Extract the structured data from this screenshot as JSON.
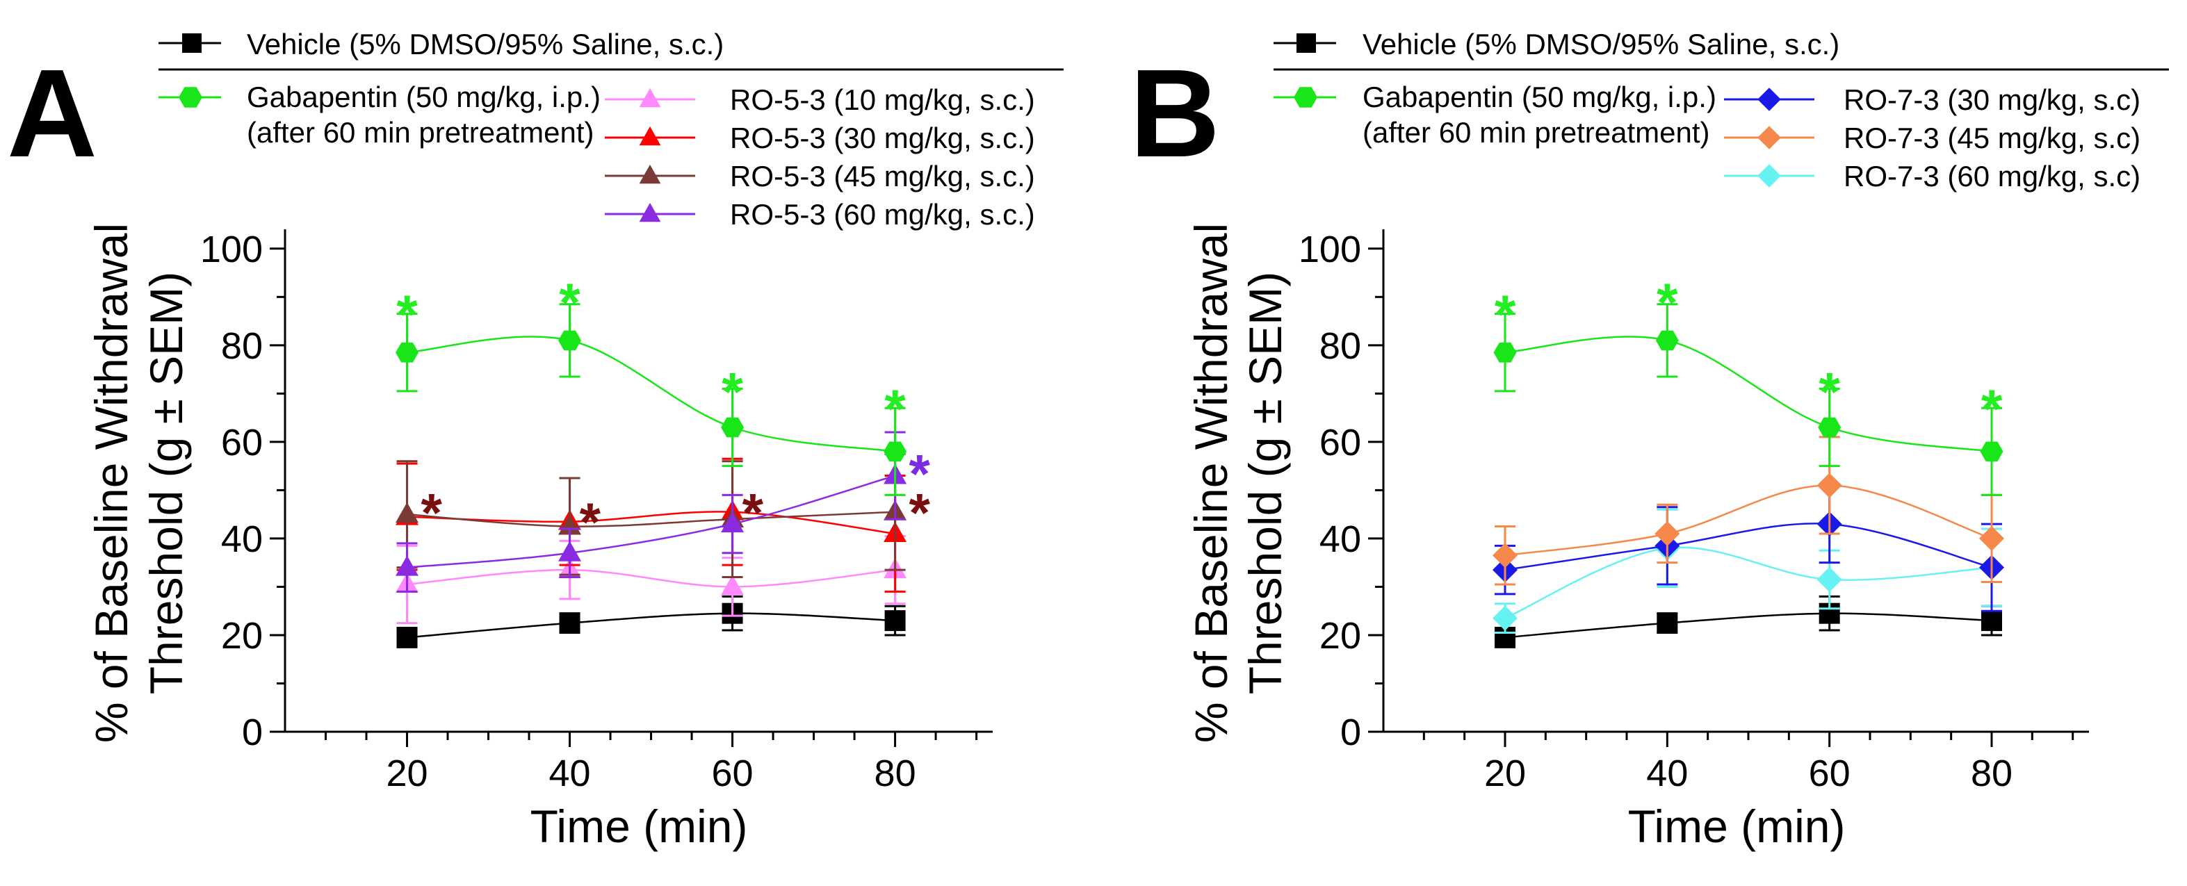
{
  "chart_data": [
    {
      "type": "line",
      "panel_label": "A",
      "xlabel": "Time (min)",
      "ylabel_line1": "% of Baseline Withdrawal",
      "ylabel_line2": "Threshold (g ± SEM)",
      "xlim": [
        5,
        92
      ],
      "ylim": [
        0,
        104
      ],
      "xticks": [
        20,
        40,
        60,
        80
      ],
      "yticks": [
        0,
        20,
        40,
        60,
        80,
        100
      ],
      "x": [
        20,
        40,
        60,
        80
      ],
      "legend": {
        "header": "Vehicle (5% DMSO/95% Saline, s.c.)",
        "gabapentin_line1": "Gabapentin (50 mg/kg, i.p.)",
        "gabapentin_line2": "(after 60 min pretreatment)"
      },
      "series": [
        {
          "name": "Vehicle (5% DMSO/95% Saline, s.c.)",
          "color": "#000000",
          "marker": "square",
          "y": [
            19.5,
            22.5,
            24.5,
            23
          ],
          "err": [
            2,
            2,
            3.5,
            3
          ],
          "legend_slot": "header"
        },
        {
          "name": "RO-5-3 (10 mg/kg, s.c.)",
          "color": "#ff88ff",
          "marker": "triangle",
          "y": [
            30.5,
            33.5,
            30,
            33.5
          ],
          "err": [
            8,
            6,
            6,
            7
          ],
          "legend_slot": "col2"
        },
        {
          "name": "RO-5-3 (30 mg/kg, s.c.)",
          "color": "#ff0000",
          "marker": "triangle",
          "y": [
            44.5,
            43.5,
            45.5,
            41
          ],
          "err": [
            11,
            9,
            11,
            12
          ],
          "legend_slot": "col2"
        },
        {
          "name": "RO-5-3 (45 mg/kg, s.c.)",
          "color": "#7b3a36",
          "marker": "triangle",
          "y": [
            45,
            42.5,
            44,
            45.5
          ],
          "err": [
            11,
            10,
            12,
            12
          ],
          "legend_slot": "col2"
        },
        {
          "name": "RO-5-3 (60 mg/kg, s.c.)",
          "color": "#8a2be2",
          "marker": "triangle",
          "y": [
            34,
            37,
            43,
            53
          ],
          "err": [
            5,
            5,
            6,
            9
          ],
          "legend_slot": "col2"
        },
        {
          "name": "Gabapentin (50 mg/kg, i.p.)",
          "color": "#19e619",
          "marker": "hexagon",
          "y": [
            78.5,
            81,
            63,
            58
          ],
          "err": [
            8,
            7.5,
            8,
            9
          ],
          "legend_slot": "gabapentin"
        }
      ],
      "annotations": [
        {
          "text": "*",
          "color": "#22ee22",
          "x": 20,
          "y": 88
        },
        {
          "text": "*",
          "color": "#22ee22",
          "x": 40,
          "y": 90.5
        },
        {
          "text": "*",
          "color": "#22ee22",
          "x": 60,
          "y": 72
        },
        {
          "text": "*",
          "color": "#22ee22",
          "x": 80,
          "y": 68.5
        },
        {
          "text": "*",
          "color": "#7a0f0f",
          "x": 23,
          "y": 47
        },
        {
          "text": "*",
          "color": "#7a0f0f",
          "x": 42.5,
          "y": 45
        },
        {
          "text": "*",
          "color": "#7a0f0f",
          "x": 62.5,
          "y": 47
        },
        {
          "text": "*",
          "color": "#7a0f0f",
          "x": 83,
          "y": 47
        },
        {
          "text": "*",
          "color": "#7b2be2",
          "x": 83,
          "y": 55
        }
      ]
    },
    {
      "type": "line",
      "panel_label": "B",
      "xlabel": "Time (min)",
      "ylabel_line1": "% of Baseline Withdrawal",
      "ylabel_line2": "Threshold (g ± SEM)",
      "xlim": [
        5,
        92
      ],
      "ylim": [
        0,
        104
      ],
      "xticks": [
        20,
        40,
        60,
        80
      ],
      "yticks": [
        0,
        20,
        40,
        60,
        80,
        100
      ],
      "x": [
        20,
        40,
        60,
        80
      ],
      "legend": {
        "header": "Vehicle (5% DMSO/95% Saline, s.c.)",
        "gabapentin_line1": "Gabapentin (50 mg/kg, i.p.)",
        "gabapentin_line2": "(after 60 min pretreatment)"
      },
      "series": [
        {
          "name": "Vehicle (5% DMSO/95% Saline, s.c.)",
          "color": "#000000",
          "marker": "square",
          "y": [
            19.5,
            22.5,
            24.5,
            23
          ],
          "err": [
            2,
            2,
            3.5,
            3
          ],
          "legend_slot": "header"
        },
        {
          "name": "RO-7-3 (60 mg/kg, s.c)",
          "color": "#66f2f2",
          "marker": "diamond",
          "y": [
            23.5,
            38,
            31.5,
            34
          ],
          "err": [
            3,
            8,
            6,
            8
          ],
          "legend_slot": "col2"
        },
        {
          "name": "RO-7-3 (30 mg/kg, s.c)",
          "color": "#1a1ae6",
          "marker": "diamond",
          "y": [
            33.5,
            38.5,
            43,
            34
          ],
          "err": [
            5,
            8,
            8,
            9
          ],
          "legend_slot": "col2"
        },
        {
          "name": "RO-7-3 (45 mg/kg, s.c)",
          "color": "#f5884a",
          "marker": "diamond",
          "y": [
            36.5,
            41,
            51,
            40
          ],
          "err": [
            6,
            6,
            10,
            9
          ],
          "legend_slot": "col2"
        },
        {
          "name": "Gabapentin (50 mg/kg, i.p.)",
          "color": "#19e619",
          "marker": "hexagon",
          "y": [
            78.5,
            81,
            63,
            58
          ],
          "err": [
            8,
            7.5,
            8,
            9
          ],
          "legend_slot": "gabapentin"
        }
      ],
      "legend_col2_order": [
        "RO-7-3 (30 mg/kg, s.c)",
        "RO-7-3 (45 mg/kg, s.c)",
        "RO-7-3 (60 mg/kg, s.c)"
      ],
      "annotations": [
        {
          "text": "*",
          "color": "#22ee22",
          "x": 20,
          "y": 88
        },
        {
          "text": "*",
          "color": "#22ee22",
          "x": 40,
          "y": 90.5
        },
        {
          "text": "*",
          "color": "#22ee22",
          "x": 60,
          "y": 72
        },
        {
          "text": "*",
          "color": "#22ee22",
          "x": 80,
          "y": 68.5
        }
      ]
    }
  ]
}
